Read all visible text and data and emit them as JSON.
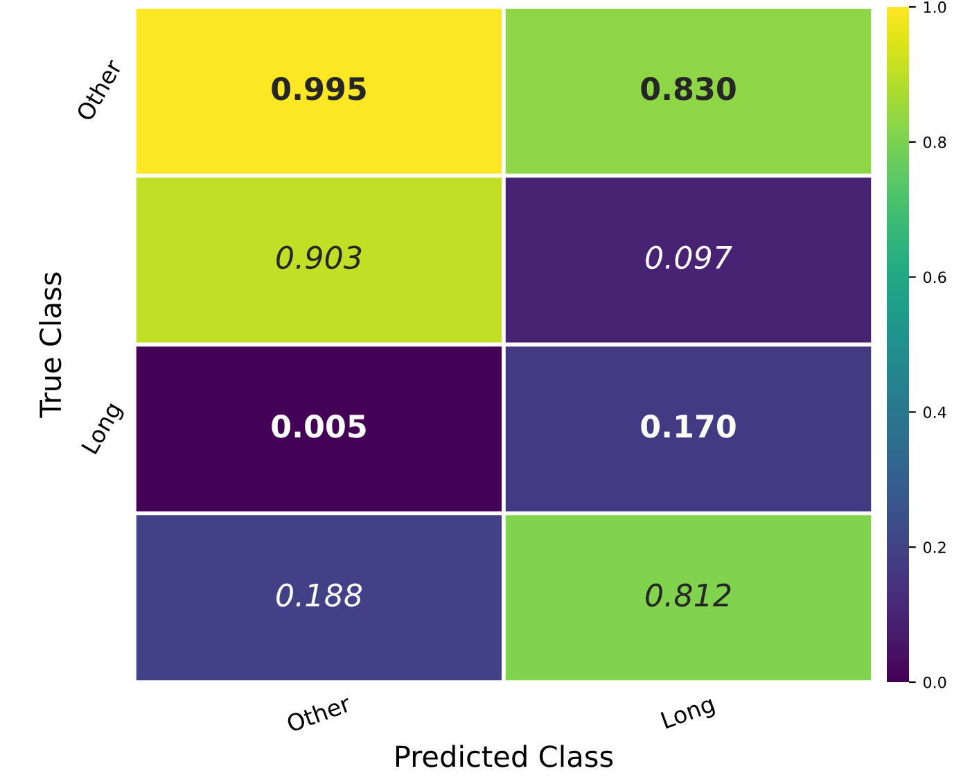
{
  "chart_data": {
    "type": "heatmap",
    "xlabel": "Predicted Class",
    "ylabel": "True Class",
    "categories": [
      "Other",
      "Long"
    ],
    "y_categories": [
      "Other",
      null,
      "Long",
      null
    ],
    "cells": [
      [
        0.995,
        0.83
      ],
      [
        0.903,
        0.097
      ],
      [
        0.005,
        0.17
      ],
      [
        0.188,
        0.812
      ]
    ],
    "cell_labels": [
      [
        "0.995",
        "0.830"
      ],
      [
        "0.903",
        "0.097"
      ],
      [
        "0.005",
        "0.170"
      ],
      [
        "0.188",
        "0.812"
      ]
    ],
    "clim": [
      0.0,
      1.0
    ],
    "cticks": [
      {
        "value": 0.0,
        "label": "0.0"
      },
      {
        "value": 0.2,
        "label": "0.2"
      },
      {
        "value": 0.4,
        "label": "0.4"
      },
      {
        "value": 0.6,
        "label": "0.6"
      },
      {
        "value": 0.8,
        "label": "0.8"
      },
      {
        "value": 1.0,
        "label": "1.0"
      }
    ]
  }
}
